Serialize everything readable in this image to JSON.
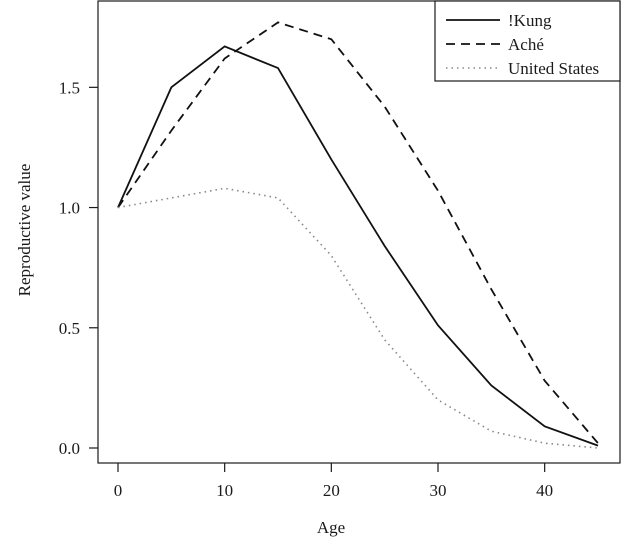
{
  "chart_data": {
    "type": "line",
    "title": "",
    "xlabel": "Age",
    "ylabel": "Reproductive value",
    "xlim": [
      0,
      45
    ],
    "ylim": [
      0,
      1.78
    ],
    "xticks": [
      0,
      10,
      20,
      30,
      40
    ],
    "xtick_labels": [
      "0",
      "10",
      "20",
      "30",
      "40"
    ],
    "yticks": [
      0,
      0.5,
      1.0,
      1.5
    ],
    "ytick_labels": [
      "0.0",
      "0.5",
      "1.0",
      "1.5"
    ],
    "grid": false,
    "legend_position": "top-right",
    "x": [
      0,
      5,
      10,
      15,
      20,
      25,
      30,
      35,
      40,
      45
    ],
    "series": [
      {
        "name": "!Kung",
        "line_style": "solid",
        "color": "#111111",
        "values": [
          1.0,
          1.5,
          1.67,
          1.58,
          1.2,
          0.84,
          0.51,
          0.26,
          0.09,
          0.01
        ]
      },
      {
        "name": "Aché",
        "line_style": "dashed",
        "color": "#111111",
        "values": [
          1.0,
          1.32,
          1.62,
          1.77,
          1.7,
          1.42,
          1.07,
          0.66,
          0.28,
          0.02
        ]
      },
      {
        "name": "United States",
        "line_style": "dotted",
        "color": "#888888",
        "values": [
          1.0,
          1.04,
          1.08,
          1.04,
          0.8,
          0.45,
          0.2,
          0.07,
          0.02,
          0.0
        ]
      }
    ]
  }
}
